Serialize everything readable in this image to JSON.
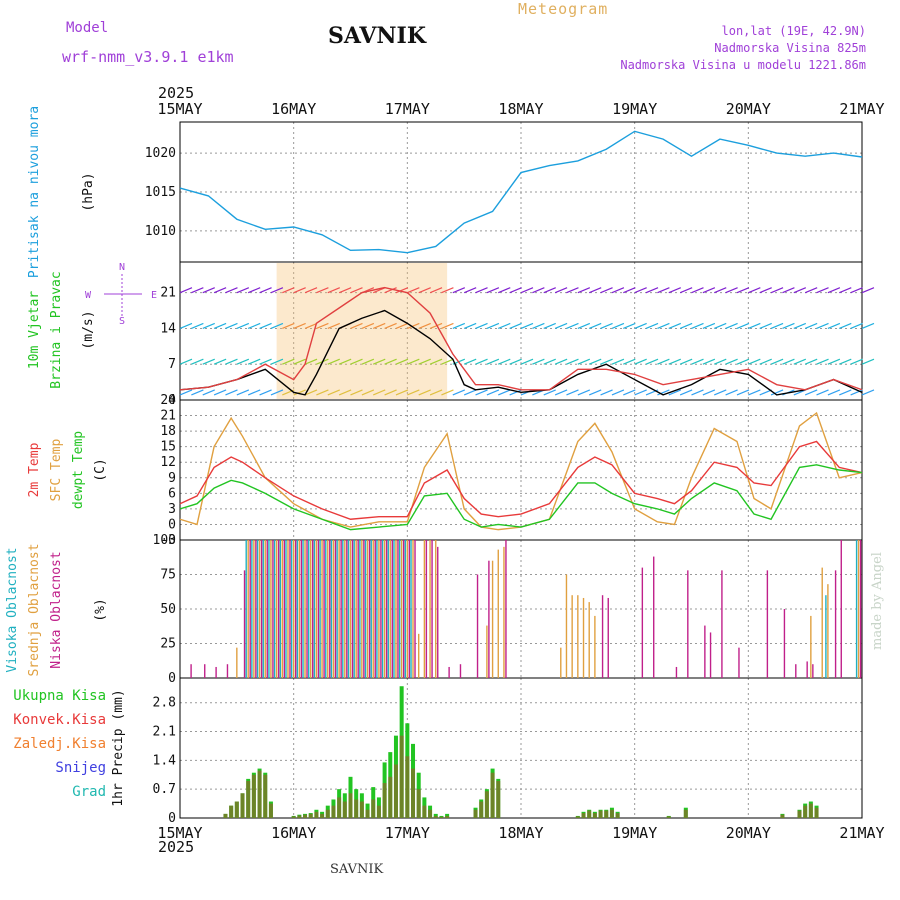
{
  "header": {
    "model_label": "Model",
    "model_name": "wrf-nmm_v3.9.1  e1km",
    "station": "SAVNIK",
    "product": "Meteogram",
    "coords": "lon,lat (19E, 42.9N)",
    "elevation": "Nadmorska Visina 825m",
    "model_elevation": "Nadmorska Visina u modelu 1221.86m",
    "year": "2025",
    "footer_station": "SAVNIK",
    "credit": "made by Angel"
  },
  "colors": {
    "pressure": "#1c9fdd",
    "temp2m": "#e83a3a",
    "sfc": "#e0a040",
    "dewpt": "#22c422",
    "high": "#20b0c0",
    "mid": "#e0a040",
    "low": "#c0208a",
    "total": "#22c422",
    "conv": "#e83a3a",
    "frozen": "#f08030",
    "snow": "#4040e0",
    "hail": "#20b8b0",
    "header": "#a040d8"
  },
  "chart_data": [
    {
      "type": "line",
      "title": "",
      "ylabel_left": "Pritisak na nivou mora",
      "ylabel_unit": "(hPa)",
      "x_ticks": [
        "15MAY",
        "16MAY",
        "17MAY",
        "18MAY",
        "19MAY",
        "20MAY",
        "21MAY"
      ],
      "ylim": [
        1006,
        1024
      ],
      "yticks": [
        1010,
        1015,
        1020
      ],
      "x": [
        0,
        0.25,
        0.5,
        0.75,
        1,
        1.25,
        1.5,
        1.75,
        2,
        2.25,
        2.5,
        2.75,
        3,
        3.25,
        3.5,
        3.75,
        4,
        4.25,
        4.5,
        4.75,
        5,
        5.25,
        5.5,
        5.75,
        6
      ],
      "values": [
        1015.5,
        1014.5,
        1011.5,
        1010.2,
        1010.5,
        1009.5,
        1007.5,
        1007.6,
        1007.2,
        1008,
        1011,
        1012.5,
        1017.5,
        1018.4,
        1019,
        1020.5,
        1022.8,
        1021.8,
        1019.6,
        1021.8,
        1021,
        1020,
        1019.6,
        1020,
        1019.5
      ]
    },
    {
      "type": "line",
      "title": "",
      "ylabel_left": "10m Vjetar",
      "ylabel_left2": "Brzina i Pravac",
      "ylabel_unit": "(m/s)",
      "compass": {
        "n": "N",
        "s": "S",
        "e": "E",
        "w": "W"
      },
      "ylim": [
        0,
        27
      ],
      "yticks": [
        0,
        7,
        14,
        21
      ],
      "series": [
        {
          "name": "",
          "x": [
            0,
            0.25,
            0.5,
            0.75,
            1,
            1.1,
            1.2,
            1.4,
            1.6,
            1.8,
            2,
            2.2,
            2.4,
            2.5,
            2.6,
            2.8,
            3,
            3.25,
            3.5,
            3.75,
            4,
            4.25,
            4.5,
            4.75,
            5,
            5.25,
            5.5,
            5.75,
            6
          ],
          "values": [
            2,
            2.5,
            4,
            6,
            1.5,
            1,
            5,
            14,
            16,
            17.5,
            15,
            12,
            8,
            3,
            2,
            2.5,
            1.5,
            2,
            5,
            7,
            4,
            1,
            3,
            6,
            5,
            1,
            2,
            4,
            1.5
          ]
        },
        {
          "name": "",
          "x": [
            0,
            0.25,
            0.5,
            0.75,
            1,
            1.1,
            1.2,
            1.4,
            1.6,
            1.8,
            2,
            2.2,
            2.4,
            2.5,
            2.6,
            2.8,
            3,
            3.25,
            3.5,
            3.75,
            4,
            4.25,
            4.5,
            4.75,
            5,
            5.25,
            5.5,
            5.75,
            6
          ],
          "values": [
            2,
            2.5,
            4,
            7,
            4,
            7,
            15,
            18,
            21,
            22,
            21,
            17,
            9,
            6,
            3,
            3,
            2,
            2,
            6,
            6,
            5,
            3,
            4,
            5,
            6,
            3,
            2,
            4,
            2
          ]
        }
      ]
    },
    {
      "type": "line",
      "title": "",
      "ylabel_left": "2m Temp",
      "ylabel_left2": "SFC Temp",
      "ylabel_left3": "dewpt Temp",
      "ylabel_unit": "(C)",
      "ylim": [
        -3,
        24
      ],
      "yticks": [
        -3,
        0,
        3,
        6,
        9,
        12,
        15,
        18,
        21,
        24
      ],
      "x": [
        0,
        0.15,
        0.3,
        0.45,
        0.55,
        0.75,
        1,
        1.25,
        1.5,
        1.75,
        2,
        2.15,
        2.35,
        2.5,
        2.65,
        2.8,
        3,
        3.25,
        3.5,
        3.65,
        3.8,
        4,
        4.2,
        4.35,
        4.5,
        4.7,
        4.9,
        5.05,
        5.2,
        5.45,
        5.6,
        5.8,
        6
      ],
      "series": [
        {
          "name": "2m Temp",
          "values": [
            4,
            5.5,
            11,
            13,
            12,
            9,
            5.5,
            3,
            1,
            1.5,
            1.5,
            8,
            10.5,
            5,
            2,
            1.5,
            2,
            4,
            11,
            13,
            11.5,
            6,
            5,
            4,
            6.5,
            12,
            11,
            8,
            7.5,
            15,
            16,
            11,
            10
          ]
        },
        {
          "name": "SFC Temp",
          "values": [
            1,
            0,
            15,
            20.5,
            17,
            9,
            4,
            1,
            -0.5,
            0.5,
            0.5,
            11,
            17.5,
            3,
            -0.5,
            -1,
            -0.5,
            1,
            16,
            19.5,
            14,
            3,
            0.5,
            0,
            9,
            18.5,
            16,
            5,
            3,
            19,
            21.5,
            9,
            10
          ]
        },
        {
          "name": "dewpt Temp",
          "values": [
            3,
            4,
            7,
            8.5,
            8,
            6,
            3,
            1,
            -1,
            -0.5,
            0,
            5.5,
            6,
            1,
            -0.5,
            0,
            -0.5,
            1,
            8,
            8,
            6,
            4,
            3,
            2,
            5,
            8,
            6.5,
            2,
            1,
            11,
            11.5,
            10.5,
            10
          ]
        }
      ]
    },
    {
      "type": "bar",
      "title": "",
      "ylabel_left": "Visoka Oblacnost",
      "ylabel_left2": "Srednja Oblacnost",
      "ylabel_left3": "Niska Oblacnost",
      "ylabel_unit": "(%)",
      "ylim": [
        0,
        100
      ],
      "yticks": [
        0,
        25,
        50,
        75,
        100
      ],
      "x": [
        0.08,
        0.2,
        0.3,
        0.4,
        0.5,
        0.55,
        0.6,
        0.65,
        0.7,
        0.75,
        0.8,
        0.85,
        0.9,
        0.95,
        1,
        1.05,
        1.1,
        1.15,
        1.2,
        1.25,
        1.3,
        1.35,
        1.4,
        1.45,
        1.5,
        1.55,
        1.6,
        1.65,
        1.7,
        1.75,
        1.8,
        1.85,
        1.9,
        1.95,
        2,
        2.05,
        2.1,
        2.15,
        2.2,
        2.25,
        2.35,
        2.45,
        2.6,
        2.7,
        2.75,
        2.8,
        2.85,
        3.35,
        3.4,
        3.45,
        3.5,
        3.55,
        3.6,
        3.65,
        3.7,
        3.75,
        4.05,
        4.15,
        4.35,
        4.45,
        4.6,
        4.65,
        4.75,
        4.9,
        5.15,
        5.3,
        5.4,
        5.5,
        5.55,
        5.65,
        5.7,
        5.75,
        5.8,
        5.97
      ],
      "series": [
        {
          "name": "Visoka Oblacnost",
          "values": [
            0,
            0,
            0,
            0,
            0,
            0,
            100,
            100,
            100,
            100,
            100,
            100,
            100,
            100,
            100,
            100,
            100,
            100,
            100,
            100,
            100,
            100,
            100,
            100,
            100,
            100,
            100,
            100,
            100,
            100,
            100,
            100,
            100,
            100,
            100,
            100,
            0,
            0,
            0,
            0,
            0,
            0,
            0,
            0,
            0,
            0,
            0,
            0,
            0,
            0,
            0,
            0,
            0,
            0,
            0,
            0,
            0,
            0,
            0,
            0,
            0,
            0,
            0,
            0,
            0,
            0,
            0,
            0,
            0,
            0,
            60,
            0,
            0,
            100
          ]
        },
        {
          "name": "Srednja Oblacnost",
          "values": [
            0,
            0,
            0,
            0,
            22,
            0,
            100,
            100,
            100,
            100,
            100,
            100,
            100,
            100,
            100,
            100,
            100,
            100,
            100,
            100,
            100,
            100,
            100,
            100,
            100,
            100,
            100,
            100,
            100,
            100,
            100,
            100,
            100,
            100,
            100,
            100,
            32,
            100,
            100,
            100,
            0,
            0,
            0,
            38,
            85,
            93,
            95,
            22,
            75,
            60,
            60,
            58,
            55,
            45,
            0,
            0,
            0,
            0,
            0,
            0,
            0,
            0,
            0,
            0,
            0,
            0,
            0,
            0,
            45,
            80,
            68,
            0,
            0,
            100
          ]
        },
        {
          "name": "Niska Oblacnost",
          "values": [
            10,
            10,
            8,
            10,
            0,
            78,
            100,
            100,
            100,
            100,
            100,
            100,
            100,
            100,
            100,
            100,
            100,
            100,
            100,
            100,
            100,
            100,
            100,
            100,
            100,
            100,
            100,
            100,
            100,
            100,
            100,
            100,
            100,
            100,
            100,
            100,
            0,
            100,
            100,
            95,
            8,
            10,
            75,
            85,
            0,
            0,
            100,
            0,
            0,
            0,
            0,
            0,
            0,
            0,
            60,
            58,
            80,
            88,
            8,
            78,
            38,
            33,
            78,
            22,
            78,
            50,
            10,
            12,
            10,
            0,
            0,
            78,
            100,
            100
          ]
        }
      ]
    },
    {
      "type": "bar",
      "title": "",
      "ylabel_left": "1hr Precip (mm)",
      "legend": [
        "Ukupna Kisa",
        "Konvek.Kisa",
        "Zaledj.Kisa",
        "Snijeg",
        "Grad"
      ],
      "ylim": [
        0,
        3.4
      ],
      "yticks": [
        0,
        0.7,
        1.4,
        2.1,
        2.8
      ],
      "x": [
        0.4,
        0.45,
        0.5,
        0.55,
        0.6,
        0.65,
        0.7,
        0.75,
        0.8,
        1,
        1.05,
        1.1,
        1.15,
        1.2,
        1.25,
        1.3,
        1.35,
        1.4,
        1.45,
        1.5,
        1.55,
        1.6,
        1.65,
        1.7,
        1.75,
        1.8,
        1.85,
        1.9,
        1.95,
        2,
        2.05,
        2.1,
        2.15,
        2.2,
        2.25,
        2.3,
        2.35,
        2.6,
        2.65,
        2.7,
        2.75,
        2.8,
        3.5,
        3.55,
        3.6,
        3.65,
        3.7,
        3.75,
        3.8,
        3.85,
        4.3,
        4.45,
        5.3,
        5.45,
        5.5,
        5.55,
        5.6
      ],
      "series": [
        {
          "name": "Ukupna Kisa",
          "values": [
            0.1,
            0.3,
            0.4,
            0.6,
            0.95,
            1.1,
            1.2,
            1.1,
            0.4,
            0.05,
            0.08,
            0.1,
            0.12,
            0.2,
            0.15,
            0.3,
            0.45,
            0.7,
            0.6,
            1.0,
            0.7,
            0.6,
            0.35,
            0.75,
            0.5,
            1.35,
            1.6,
            2.0,
            3.2,
            2.3,
            1.8,
            1.1,
            0.5,
            0.3,
            0.1,
            0.05,
            0.1,
            0.25,
            0.45,
            0.7,
            1.2,
            0.95,
            0.05,
            0.15,
            0.2,
            0.15,
            0.2,
            0.2,
            0.25,
            0.15,
            0.05,
            0.25,
            0.1,
            0.2,
            0.35,
            0.4,
            0.3
          ]
        },
        {
          "name": "Konvek.Kisa",
          "values": [
            0.1,
            0.3,
            0.4,
            0.6,
            0.9,
            1.05,
            1.15,
            1.05,
            0.35,
            0.04,
            0.06,
            0.08,
            0.1,
            0.15,
            0.1,
            0.2,
            0.3,
            0.5,
            0.4,
            0.6,
            0.45,
            0.4,
            0.2,
            0.45,
            0.3,
            0.85,
            1.0,
            1.3,
            2.0,
            1.5,
            1.2,
            0.7,
            0.3,
            0.2,
            0.05,
            0.03,
            0.05,
            0.2,
            0.4,
            0.65,
            1.1,
            0.9,
            0.04,
            0.12,
            0.18,
            0.12,
            0.18,
            0.18,
            0.2,
            0.12,
            0.04,
            0.2,
            0.08,
            0.18,
            0.3,
            0.35,
            0.25
          ]
        }
      ]
    }
  ]
}
